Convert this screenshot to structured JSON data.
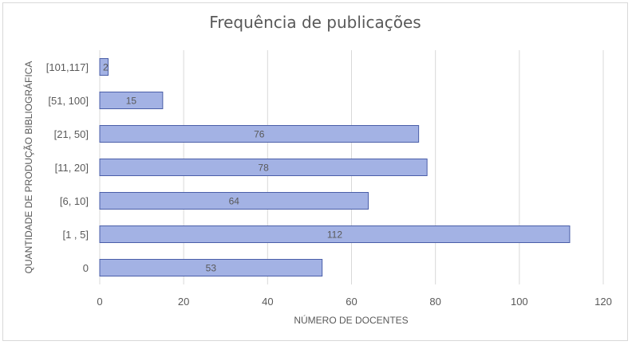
{
  "chart_data": {
    "type": "bar",
    "orientation": "horizontal",
    "title": "Frequência de publicações",
    "xlabel": "NÚMERO DE DOCENTES",
    "ylabel": "QUANTIDADE DE PRODUÇÃO BIBLIOGRÁFICA",
    "categories": [
      "0",
      "[1 , 5]",
      "[6, 10]",
      "[11, 20]",
      "[21, 50]",
      "[51, 100]",
      "[101,117]"
    ],
    "values": [
      53,
      112,
      64,
      78,
      76,
      15,
      2
    ],
    "xlim": [
      0,
      120
    ],
    "xticks": [
      0,
      20,
      40,
      60,
      80,
      100,
      120
    ],
    "grid": "vertical",
    "colors": {
      "bar_fill": "#a3b2e4",
      "bar_stroke": "#4a5ea8",
      "grid": "#d9d9d9",
      "text": "#595959"
    }
  }
}
